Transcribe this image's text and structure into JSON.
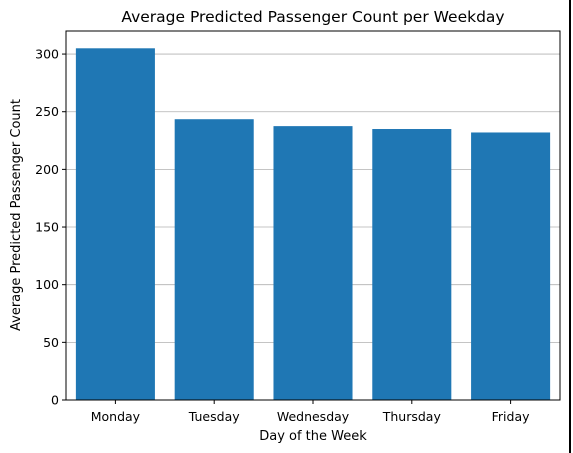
{
  "chart_data": {
    "type": "bar",
    "title": "Average Predicted Passenger Count per Weekday",
    "xlabel": "Day of the Week",
    "ylabel": "Average Predicted Passenger Count",
    "categories": [
      "Monday",
      "Tuesday",
      "Wednesday",
      "Thursday",
      "Friday"
    ],
    "values": [
      305,
      243.5,
      237.5,
      235,
      232
    ],
    "ylim": [
      0,
      320
    ],
    "yticks": [
      0,
      50,
      100,
      150,
      200,
      250,
      300
    ],
    "grid": "y",
    "bar_color": "#1f77b4"
  }
}
